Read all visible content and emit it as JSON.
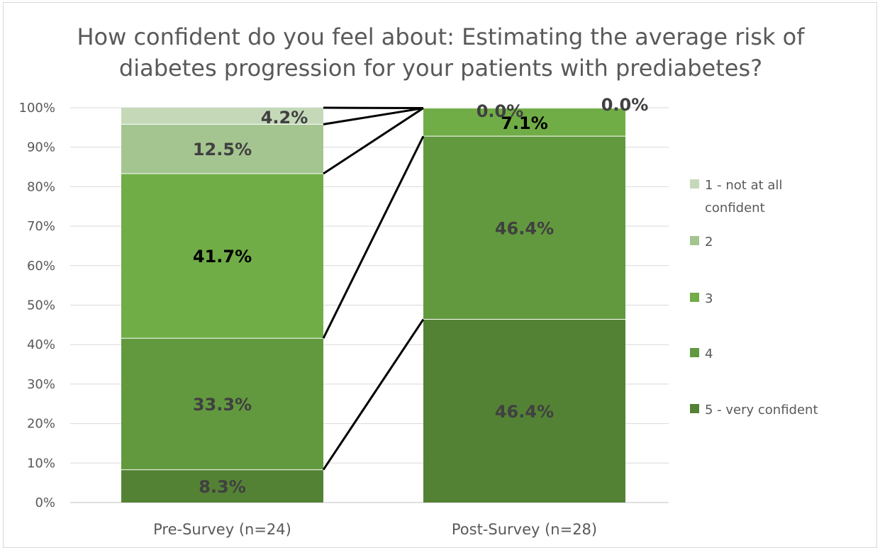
{
  "chart_data": {
    "type": "bar",
    "stacked": true,
    "title": "How confident do you feel about: Estimating the average risk of diabetes progression for your patients with prediabetes?",
    "title_lines": [
      "How confident do you feel about: Estimating the average risk of",
      "diabetes progression for your patients with prediabetes?"
    ],
    "categories": [
      "Pre-Survey (n=24)",
      "Post-Survey (n=28)"
    ],
    "series": [
      {
        "name": "5 - very confident",
        "color": "#548235",
        "values": [
          8.3,
          46.4
        ],
        "labels": [
          "8.3%",
          "46.4%"
        ],
        "label_color": "#404040"
      },
      {
        "name": "4",
        "color": "#62993E",
        "values": [
          33.3,
          46.4
        ],
        "labels": [
          "33.3%",
          "46.4%"
        ],
        "label_color": "#404040"
      },
      {
        "name": "3",
        "color": "#70AD47",
        "values": [
          41.7,
          7.1
        ],
        "labels": [
          "41.7%",
          "7.1%"
        ],
        "label_color": "#000000"
      },
      {
        "name": "2",
        "color": "#A5C590",
        "values": [
          12.5,
          0.0
        ],
        "labels": [
          "12.5%",
          "0.0%"
        ],
        "label_color": "#404040"
      },
      {
        "name": "1 - not at all confident",
        "color": "#C5D9B9",
        "values": [
          4.2,
          0.0
        ],
        "labels": [
          "4.2%",
          "0.0%"
        ],
        "label_color": "#404040"
      }
    ],
    "legend_order": [
      "1 - not at all confident",
      "2",
      "3",
      "4",
      "5 - very confident"
    ],
    "yticks": [
      "0%",
      "10%",
      "20%",
      "30%",
      "40%",
      "50%",
      "60%",
      "70%",
      "80%",
      "90%",
      "100%"
    ],
    "ylim": [
      0,
      100
    ],
    "xlabel": "",
    "ylabel": "",
    "grid": true,
    "series_lines": true,
    "legend_position": "right",
    "gridline_color": "#d9d9d9",
    "axis_color": "#bfbfbf"
  }
}
